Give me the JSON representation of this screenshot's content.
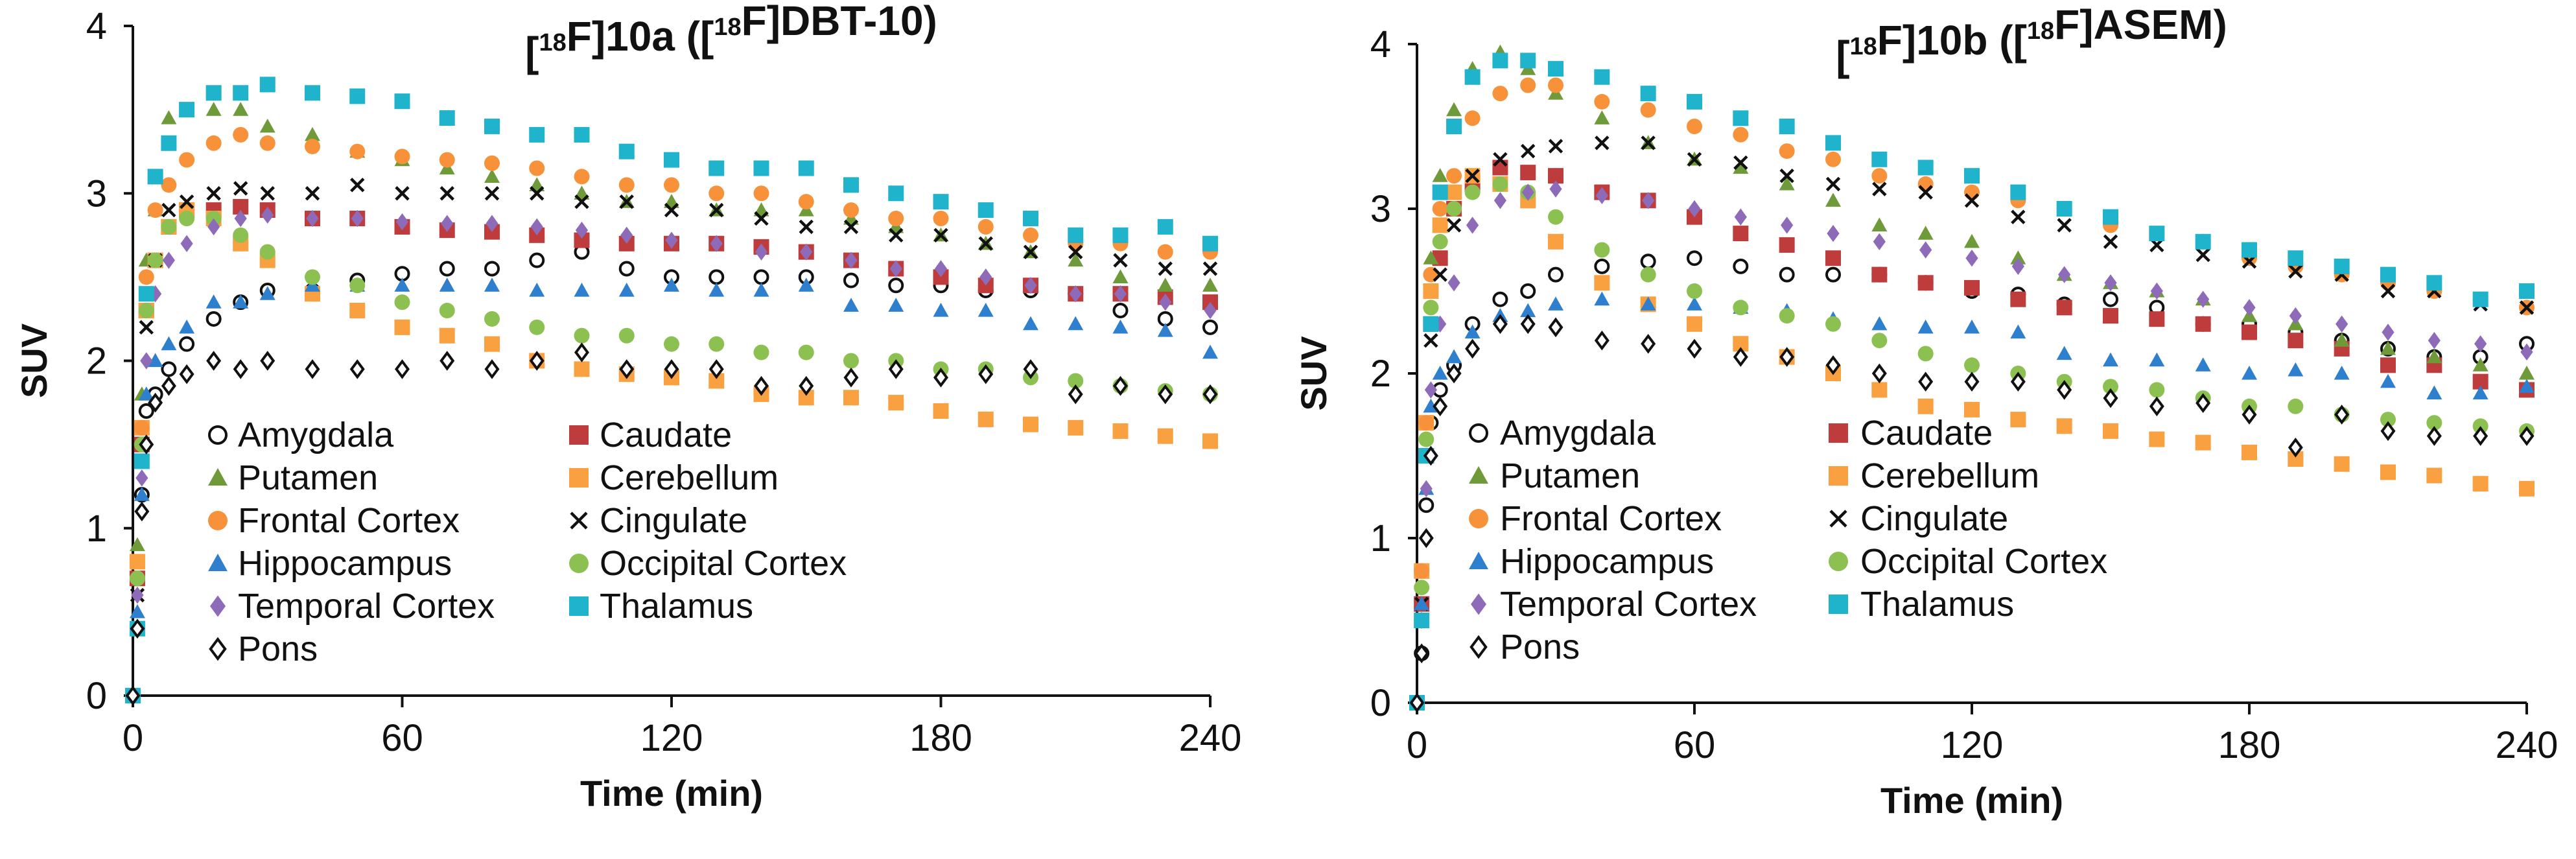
{
  "chart_data": [
    {
      "type": "scatter",
      "title": "[18F]10a ([18F]DBT-10)",
      "xlabel": "Time (min)",
      "ylabel": "SUV",
      "xlim": [
        0,
        240
      ],
      "ylim": [
        0,
        4
      ],
      "xticks": [
        "0",
        "60",
        "120",
        "180",
        "240"
      ],
      "yticks": [
        "0",
        "1",
        "2",
        "3",
        "4"
      ],
      "grid": false,
      "legend_position": "bottom-left",
      "x": [
        0,
        1,
        2,
        3,
        5,
        8,
        12,
        18,
        24,
        30,
        40,
        50,
        60,
        70,
        80,
        90,
        100,
        110,
        120,
        130,
        140,
        150,
        160,
        170,
        180,
        190,
        200,
        210,
        220,
        230,
        240
      ],
      "series": [
        {
          "name": "Amygdala",
          "marker": "circle-open",
          "color": "#111111",
          "values": [
            0,
            0.4,
            1.2,
            1.7,
            1.8,
            1.95,
            2.1,
            2.25,
            2.35,
            2.42,
            2.42,
            2.48,
            2.52,
            2.55,
            2.55,
            2.6,
            2.65,
            2.55,
            2.5,
            2.5,
            2.5,
            2.5,
            2.48,
            2.45,
            2.45,
            2.42,
            2.42,
            2.4,
            2.3,
            2.25,
            2.2
          ]
        },
        {
          "name": "Caudate",
          "marker": "square",
          "color": "#be3c3c",
          "values": [
            0,
            0.7,
            1.5,
            2.3,
            2.6,
            2.8,
            2.9,
            2.9,
            2.92,
            2.9,
            2.85,
            2.85,
            2.8,
            2.78,
            2.77,
            2.75,
            2.72,
            2.7,
            2.7,
            2.7,
            2.68,
            2.65,
            2.6,
            2.55,
            2.5,
            2.45,
            2.45,
            2.4,
            2.4,
            2.38,
            2.35
          ]
        },
        {
          "name": "Putamen",
          "marker": "triangle",
          "color": "#6f9a3a",
          "values": [
            0,
            0.9,
            1.8,
            2.6,
            2.9,
            3.45,
            3.5,
            3.5,
            3.5,
            3.4,
            3.35,
            3.25,
            3.2,
            3.15,
            3.1,
            3.05,
            3.0,
            2.95,
            2.95,
            2.9,
            2.9,
            2.9,
            2.85,
            2.8,
            2.75,
            2.7,
            2.65,
            2.6,
            2.5,
            2.45,
            2.45
          ]
        },
        {
          "name": "Cerebellum",
          "marker": "square",
          "color": "#f9a040",
          "values": [
            0,
            0.8,
            1.6,
            2.3,
            2.6,
            2.8,
            2.9,
            2.85,
            2.7,
            2.6,
            2.4,
            2.3,
            2.2,
            2.15,
            2.1,
            2.0,
            1.95,
            1.92,
            1.9,
            1.88,
            1.8,
            1.78,
            1.78,
            1.75,
            1.7,
            1.65,
            1.62,
            1.6,
            1.58,
            1.55,
            1.52
          ]
        },
        {
          "name": "Frontal Cortex",
          "marker": "circle",
          "color": "#f7923a",
          "values": [
            0,
            0.7,
            1.6,
            2.5,
            2.9,
            3.05,
            3.2,
            3.3,
            3.35,
            3.3,
            3.28,
            3.25,
            3.22,
            3.2,
            3.18,
            3.15,
            3.1,
            3.05,
            3.05,
            3.0,
            3.0,
            2.95,
            2.9,
            2.85,
            2.85,
            2.8,
            2.75,
            2.7,
            2.7,
            2.65,
            2.65
          ]
        },
        {
          "name": "Cingulate",
          "marker": "x",
          "color": "#111111",
          "values": [
            0,
            0.6,
            1.4,
            2.2,
            2.6,
            2.9,
            2.95,
            3.0,
            3.03,
            3.0,
            3.0,
            3.05,
            3.0,
            3.0,
            3.0,
            3.0,
            2.95,
            2.95,
            2.9,
            2.9,
            2.85,
            2.8,
            2.8,
            2.75,
            2.75,
            2.7,
            2.65,
            2.65,
            2.6,
            2.55,
            2.55
          ]
        },
        {
          "name": "Hippocampus",
          "marker": "triangle",
          "color": "#2f7fcf",
          "values": [
            0,
            0.5,
            1.2,
            1.8,
            2.0,
            2.1,
            2.2,
            2.35,
            2.35,
            2.4,
            2.45,
            2.45,
            2.45,
            2.45,
            2.45,
            2.42,
            2.42,
            2.42,
            2.45,
            2.42,
            2.42,
            2.45,
            2.33,
            2.33,
            2.3,
            2.3,
            2.22,
            2.22,
            2.2,
            2.18,
            2.05
          ]
        },
        {
          "name": "Occipital Cortex",
          "marker": "circle",
          "color": "#8cc152",
          "values": [
            0,
            0.7,
            1.5,
            2.3,
            2.6,
            2.8,
            2.85,
            2.85,
            2.75,
            2.65,
            2.5,
            2.45,
            2.35,
            2.3,
            2.25,
            2.2,
            2.15,
            2.15,
            2.1,
            2.1,
            2.05,
            2.05,
            2.0,
            2.0,
            1.95,
            1.95,
            1.9,
            1.88,
            1.85,
            1.82,
            1.8
          ]
        },
        {
          "name": "Temporal Cortex",
          "marker": "diamond",
          "color": "#8e6bb8",
          "values": [
            0,
            0.6,
            1.3,
            2.0,
            2.4,
            2.6,
            2.7,
            2.8,
            2.85,
            2.87,
            2.85,
            2.85,
            2.83,
            2.82,
            2.82,
            2.8,
            2.78,
            2.75,
            2.72,
            2.7,
            2.65,
            2.65,
            2.6,
            2.55,
            2.55,
            2.5,
            2.45,
            2.4,
            2.4,
            2.35,
            2.3
          ]
        },
        {
          "name": "Thalamus",
          "marker": "square",
          "color": "#1fb3cc",
          "values": [
            0,
            0.4,
            1.4,
            2.4,
            3.1,
            3.3,
            3.5,
            3.6,
            3.6,
            3.65,
            3.6,
            3.58,
            3.55,
            3.45,
            3.4,
            3.35,
            3.35,
            3.25,
            3.2,
            3.15,
            3.15,
            3.15,
            3.05,
            3.0,
            2.95,
            2.9,
            2.85,
            2.75,
            2.75,
            2.8,
            2.7
          ]
        },
        {
          "name": "Pons",
          "marker": "diamond-open",
          "color": "#111111",
          "values": [
            0,
            0.4,
            1.1,
            1.5,
            1.75,
            1.85,
            1.92,
            2.0,
            1.95,
            2.0,
            1.95,
            1.95,
            1.95,
            2.0,
            1.95,
            2.0,
            2.05,
            1.95,
            1.95,
            1.95,
            1.85,
            1.85,
            1.9,
            1.95,
            1.9,
            1.92,
            1.95,
            1.8,
            1.85,
            1.8,
            1.8
          ]
        }
      ]
    },
    {
      "type": "scatter",
      "title": "[18F]10b ([18F]ASEM)",
      "xlabel": "Time (min)",
      "ylabel": "SUV",
      "xlim": [
        0,
        240
      ],
      "ylim": [
        0,
        4
      ],
      "xticks": [
        "0",
        "60",
        "120",
        "180",
        "240"
      ],
      "yticks": [
        "0",
        "1",
        "2",
        "3",
        "4"
      ],
      "grid": false,
      "legend_position": "bottom-left",
      "x": [
        0,
        1,
        2,
        3,
        5,
        8,
        12,
        18,
        24,
        30,
        40,
        50,
        60,
        70,
        80,
        90,
        100,
        110,
        120,
        130,
        140,
        150,
        160,
        170,
        180,
        190,
        200,
        210,
        220,
        230,
        240
      ],
      "series": [
        {
          "name": "Amygdala",
          "marker": "circle-open",
          "color": "#111111",
          "values": [
            0,
            0.3,
            1.2,
            1.7,
            1.9,
            2.05,
            2.3,
            2.45,
            2.5,
            2.6,
            2.65,
            2.68,
            2.7,
            2.65,
            2.6,
            2.6,
            2.6,
            2.55,
            2.5,
            2.48,
            2.42,
            2.45,
            2.4,
            2.3,
            2.3,
            2.25,
            2.2,
            2.15,
            2.1,
            2.1,
            2.18
          ]
        },
        {
          "name": "Caudate",
          "marker": "square",
          "color": "#be3c3c",
          "values": [
            0,
            0.6,
            1.5,
            2.3,
            2.7,
            3.0,
            3.15,
            3.25,
            3.22,
            3.2,
            3.1,
            3.05,
            2.95,
            2.85,
            2.78,
            2.7,
            2.6,
            2.55,
            2.52,
            2.45,
            2.4,
            2.35,
            2.33,
            2.3,
            2.25,
            2.2,
            2.15,
            2.05,
            2.05,
            1.95,
            1.9
          ]
        },
        {
          "name": "Putamen",
          "marker": "triangle",
          "color": "#6f9a3a",
          "values": [
            0,
            0.8,
            1.7,
            2.7,
            3.2,
            3.6,
            3.85,
            3.95,
            3.85,
            3.7,
            3.55,
            3.4,
            3.3,
            3.25,
            3.15,
            3.05,
            2.9,
            2.85,
            2.8,
            2.7,
            2.6,
            2.55,
            2.5,
            2.45,
            2.35,
            2.3,
            2.2,
            2.15,
            2.1,
            2.05,
            2.0
          ]
        },
        {
          "name": "Cerebellum",
          "marker": "square",
          "color": "#f9a040",
          "values": [
            0,
            0.8,
            1.7,
            2.5,
            2.9,
            3.1,
            3.2,
            3.15,
            3.05,
            2.8,
            2.55,
            2.42,
            2.3,
            2.18,
            2.1,
            2.0,
            1.9,
            1.8,
            1.78,
            1.72,
            1.68,
            1.65,
            1.6,
            1.58,
            1.52,
            1.48,
            1.45,
            1.4,
            1.38,
            1.33,
            1.3
          ]
        },
        {
          "name": "Frontal Cortex",
          "marker": "circle",
          "color": "#f7923a",
          "values": [
            0,
            0.8,
            1.7,
            2.6,
            3.0,
            3.2,
            3.55,
            3.7,
            3.75,
            3.75,
            3.65,
            3.6,
            3.5,
            3.45,
            3.35,
            3.3,
            3.2,
            3.15,
            3.1,
            3.05,
            3.0,
            2.9,
            2.85,
            2.8,
            2.7,
            2.65,
            2.6,
            2.55,
            2.5,
            2.45,
            2.4
          ]
        },
        {
          "name": "Cingulate",
          "marker": "x",
          "color": "#111111",
          "values": [
            0,
            0.6,
            1.5,
            2.2,
            2.6,
            2.9,
            3.2,
            3.3,
            3.35,
            3.38,
            3.4,
            3.4,
            3.3,
            3.28,
            3.2,
            3.15,
            3.12,
            3.1,
            3.05,
            2.95,
            2.9,
            2.8,
            2.78,
            2.72,
            2.68,
            2.62,
            2.6,
            2.5,
            2.5,
            2.42,
            2.4
          ]
        },
        {
          "name": "Hippocampus",
          "marker": "triangle",
          "color": "#2f7fcf",
          "values": [
            0,
            0.6,
            1.3,
            1.8,
            2.0,
            2.1,
            2.25,
            2.35,
            2.38,
            2.42,
            2.45,
            2.42,
            2.42,
            2.4,
            2.38,
            2.33,
            2.3,
            2.28,
            2.28,
            2.25,
            2.12,
            2.08,
            2.08,
            2.05,
            2.0,
            2.02,
            2.0,
            1.95,
            1.88,
            1.88,
            1.92
          ]
        },
        {
          "name": "Occipital Cortex",
          "marker": "circle",
          "color": "#8cc152",
          "values": [
            0,
            0.7,
            1.6,
            2.4,
            2.8,
            3.0,
            3.1,
            3.15,
            3.1,
            2.95,
            2.75,
            2.6,
            2.5,
            2.4,
            2.35,
            2.3,
            2.2,
            2.12,
            2.05,
            2.0,
            1.95,
            1.92,
            1.9,
            1.85,
            1.8,
            1.8,
            1.75,
            1.72,
            1.7,
            1.68,
            1.65
          ]
        },
        {
          "name": "Temporal Cortex",
          "marker": "diamond",
          "color": "#8e6bb8",
          "values": [
            0,
            0.5,
            1.3,
            1.9,
            2.3,
            2.55,
            2.9,
            3.05,
            3.1,
            3.12,
            3.08,
            3.05,
            3.0,
            2.95,
            2.9,
            2.85,
            2.8,
            2.75,
            2.7,
            2.65,
            2.6,
            2.55,
            2.5,
            2.45,
            2.4,
            2.35,
            2.3,
            2.25,
            2.2,
            2.18,
            2.13
          ]
        },
        {
          "name": "Thalamus",
          "marker": "square",
          "color": "#1fb3cc",
          "values": [
            0,
            0.5,
            1.5,
            2.3,
            3.1,
            3.5,
            3.8,
            3.9,
            3.9,
            3.85,
            3.8,
            3.7,
            3.65,
            3.55,
            3.5,
            3.4,
            3.3,
            3.25,
            3.2,
            3.1,
            3.0,
            2.95,
            2.85,
            2.8,
            2.75,
            2.7,
            2.65,
            2.6,
            2.55,
            2.45,
            2.5
          ]
        },
        {
          "name": "Pons",
          "marker": "diamond-open",
          "color": "#111111",
          "values": [
            0,
            0.3,
            1.0,
            1.5,
            1.8,
            2.0,
            2.15,
            2.3,
            2.3,
            2.28,
            2.2,
            2.18,
            2.15,
            2.1,
            2.1,
            2.05,
            2.0,
            1.95,
            1.95,
            1.95,
            1.9,
            1.85,
            1.8,
            1.82,
            1.75,
            1.55,
            1.75,
            1.65,
            1.62,
            1.62,
            1.62
          ]
        }
      ]
    }
  ]
}
